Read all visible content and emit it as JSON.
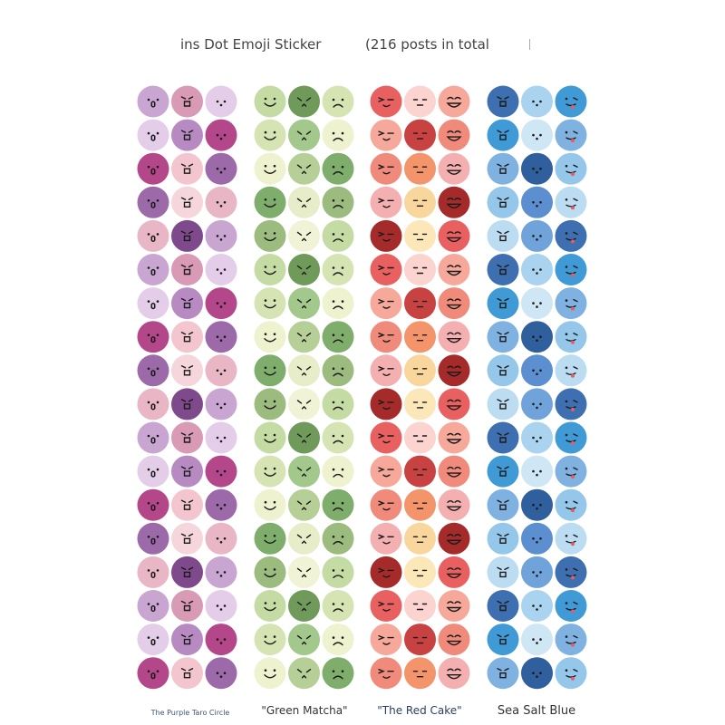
{
  "header": {
    "title": "ins Dot Emoji Sticker",
    "subtitle": "(216 posts in total"
  },
  "sheets": [
    {
      "caption": "The Purple Taro Circle",
      "palette": [
        "#c9a6d2",
        "#b78bc2",
        "#9c6aa8",
        "#7f4a8c",
        "#e4cde9",
        "#f3c6cf",
        "#e9b6c6",
        "#d89ab4",
        "#b3478a",
        "#f5d6dc"
      ]
    },
    {
      "caption": "\"Green Matcha\"",
      "palette": [
        "#e6edc8",
        "#c4dca3",
        "#a2c88b",
        "#7fae6c",
        "#f1f3d6",
        "#d6e4b4",
        "#b5cf96",
        "#9cbb7e",
        "#6f9a5a",
        "#eef2cf"
      ]
    },
    {
      "caption": "\"The Red Cake\"",
      "palette": [
        "#f08a7a",
        "#f9d79c",
        "#e96060",
        "#c84242",
        "#f4b0b0",
        "#fbe7b8",
        "#f6a89a",
        "#f3946b",
        "#a52a2a",
        "#fbd3cf"
      ]
    },
    {
      "caption": "Sea Salt Blue",
      "palette": [
        "#a9d3ee",
        "#7fb2e0",
        "#5b8fcf",
        "#3e6fb0",
        "#cfe6f5",
        "#95c7ea",
        "#6fa3da",
        "#3f9ad6",
        "#2f5f9c",
        "#bcdcf1"
      ]
    }
  ],
  "faces": [
    "o",
    "smile",
    "wink",
    "cry",
    "angry",
    "flat",
    "dots",
    "sad",
    "grin",
    "tongue"
  ]
}
